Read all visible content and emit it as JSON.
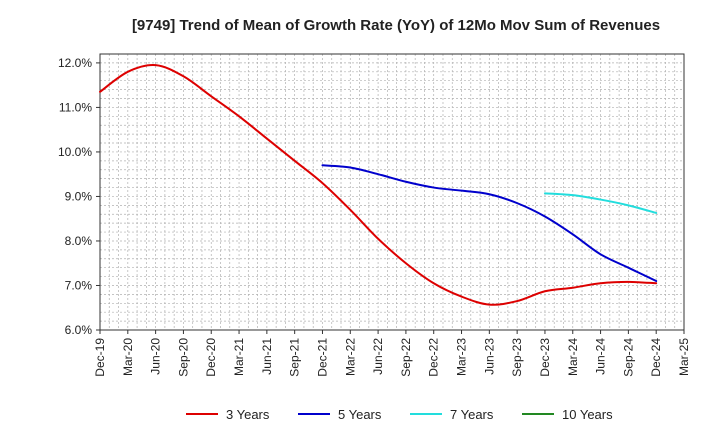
{
  "chart_data": {
    "type": "line",
    "title": "[9749]  Trend of Mean of Growth Rate (YoY) of 12Mo Mov Sum of Revenues",
    "xlabel": "",
    "ylabel": "",
    "ylim": [
      6.0,
      12.2
    ],
    "yticks": [
      6.0,
      7.0,
      8.0,
      9.0,
      10.0,
      11.0,
      12.0
    ],
    "ytick_labels": [
      "6.0%",
      "7.0%",
      "8.0%",
      "9.0%",
      "10.0%",
      "11.0%",
      "12.0%"
    ],
    "x_range": [
      "Dec-19",
      "Mar-25"
    ],
    "xtick_labels": [
      "Dec-19",
      "Mar-20",
      "Jun-20",
      "Sep-20",
      "Dec-20",
      "Mar-21",
      "Jun-21",
      "Sep-21",
      "Dec-21",
      "Mar-22",
      "Jun-22",
      "Sep-22",
      "Dec-22",
      "Mar-23",
      "Jun-23",
      "Sep-23",
      "Dec-23",
      "Mar-24",
      "Jun-24",
      "Sep-24",
      "Dec-24",
      "Mar-25"
    ],
    "grid": true,
    "legend_position": "bottom",
    "series": [
      {
        "name": "3 Years",
        "color": "#dd0000",
        "points": [
          [
            "Dec-19",
            11.35
          ],
          [
            "Mar-20",
            11.8
          ],
          [
            "Jun-20",
            11.95
          ],
          [
            "Sep-20",
            11.7
          ],
          [
            "Dec-20",
            11.25
          ],
          [
            "Mar-21",
            10.8
          ],
          [
            "Jun-21",
            10.3
          ],
          [
            "Sep-21",
            9.8
          ],
          [
            "Dec-21",
            9.3
          ],
          [
            "Mar-22",
            8.7
          ],
          [
            "Jun-22",
            8.05
          ],
          [
            "Sep-22",
            7.5
          ],
          [
            "Dec-22",
            7.05
          ],
          [
            "Mar-23",
            6.75
          ],
          [
            "Jun-23",
            6.57
          ],
          [
            "Sep-23",
            6.65
          ],
          [
            "Dec-23",
            6.87
          ],
          [
            "Mar-24",
            6.95
          ],
          [
            "Jun-24",
            7.05
          ],
          [
            "Sep-24",
            7.08
          ],
          [
            "Dec-24",
            7.05
          ]
        ]
      },
      {
        "name": "5 Years",
        "color": "#0000cc",
        "points": [
          [
            "Dec-21",
            9.7
          ],
          [
            "Mar-22",
            9.65
          ],
          [
            "Jun-22",
            9.5
          ],
          [
            "Sep-22",
            9.33
          ],
          [
            "Dec-22",
            9.2
          ],
          [
            "Mar-23",
            9.13
          ],
          [
            "Jun-23",
            9.05
          ],
          [
            "Sep-23",
            8.85
          ],
          [
            "Dec-23",
            8.55
          ],
          [
            "Mar-24",
            8.15
          ],
          [
            "Jun-24",
            7.7
          ],
          [
            "Sep-24",
            7.4
          ],
          [
            "Dec-24",
            7.1
          ]
        ]
      },
      {
        "name": "7 Years",
        "color": "#22dddd",
        "points": [
          [
            "Dec-23",
            9.07
          ],
          [
            "Mar-24",
            9.03
          ],
          [
            "Jun-24",
            8.93
          ],
          [
            "Sep-24",
            8.8
          ],
          [
            "Dec-24",
            8.63
          ]
        ]
      },
      {
        "name": "10 Years",
        "color": "#228822",
        "points": []
      }
    ]
  }
}
